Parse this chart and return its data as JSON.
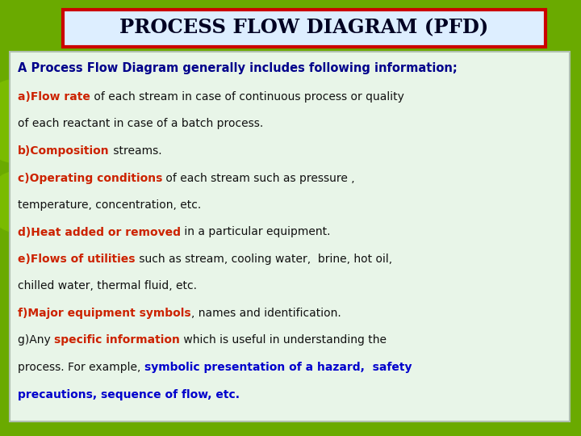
{
  "bg_color": "#6aaa00",
  "title": "PROCESS FLOW DIAGRAM (PFD)",
  "title_bg": "#ddeeff",
  "title_border": "#cc0000",
  "content_bg": "#e8f5e8",
  "subtitle": "A Process Flow Diagram generally includes following information;",
  "subtitle_color": "#00008b",
  "lines": [
    {
      "segments": [
        {
          "text": "a)Flow rate",
          "color": "#cc2200",
          "bold": true
        },
        {
          "text": " of each stream in case of continuous process or quality",
          "color": "#111111",
          "bold": false
        }
      ]
    },
    {
      "segments": [
        {
          "text": "of each reactant in case of a batch process.",
          "color": "#111111",
          "bold": false
        }
      ]
    },
    {
      "segments": [
        {
          "text": "b)Composition",
          "color": "#cc2200",
          "bold": true
        },
        {
          "text": " streams.",
          "color": "#111111",
          "bold": false
        }
      ]
    },
    {
      "segments": [
        {
          "text": "c)Operating conditions",
          "color": "#cc2200",
          "bold": true
        },
        {
          "text": " of each stream such as pressure ,",
          "color": "#111111",
          "bold": false
        }
      ]
    },
    {
      "segments": [
        {
          "text": "temperature, concentration, etc.",
          "color": "#111111",
          "bold": false
        }
      ]
    },
    {
      "segments": [
        {
          "text": "d)Heat added or removed",
          "color": "#cc2200",
          "bold": true
        },
        {
          "text": " in a particular equipment.",
          "color": "#111111",
          "bold": false
        }
      ]
    },
    {
      "segments": [
        {
          "text": "e)Flows of utilities",
          "color": "#cc2200",
          "bold": true
        },
        {
          "text": " such as stream, cooling water,  brine, hot oil,",
          "color": "#111111",
          "bold": false
        }
      ]
    },
    {
      "segments": [
        {
          "text": "chilled water, thermal fluid, etc.",
          "color": "#111111",
          "bold": false
        }
      ]
    },
    {
      "segments": [
        {
          "text": "f)Major equipment symbols",
          "color": "#cc2200",
          "bold": true
        },
        {
          "text": ", names and identification.",
          "color": "#111111",
          "bold": false
        }
      ]
    },
    {
      "segments": [
        {
          "text": "g)Any ",
          "color": "#111111",
          "bold": false
        },
        {
          "text": "specific information",
          "color": "#cc2200",
          "bold": true
        },
        {
          "text": " which is useful in understanding the",
          "color": "#111111",
          "bold": false
        }
      ]
    },
    {
      "segments": [
        {
          "text": "process. For example, ",
          "color": "#111111",
          "bold": false
        },
        {
          "text": "symbolic presentation of a hazard,  safety",
          "color": "#0000cc",
          "bold": true
        }
      ]
    },
    {
      "segments": [
        {
          "text": "precautions, sequence of flow, etc.",
          "color": "#0000cc",
          "bold": true
        }
      ]
    }
  ],
  "fig_width": 7.2,
  "fig_height": 5.4,
  "dpi": 100
}
